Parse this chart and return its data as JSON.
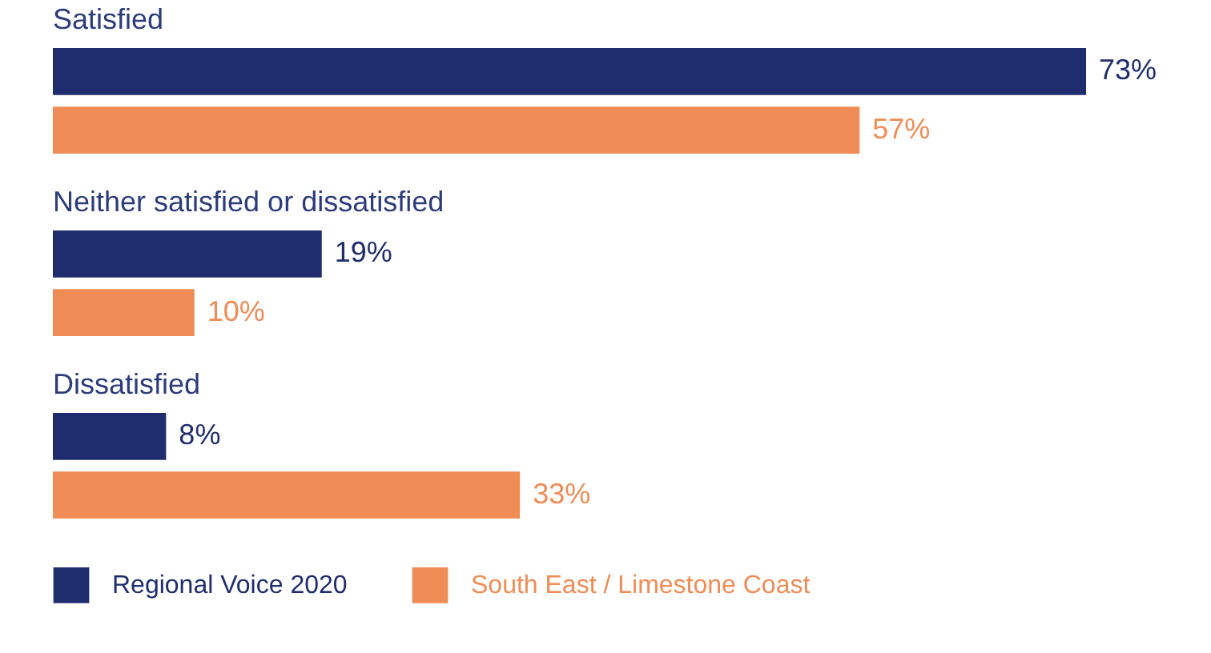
{
  "chart_data": {
    "type": "bar",
    "orientation": "horizontal",
    "categories": [
      "Satisfied",
      "Neither satisfied or dissatisfied",
      "Dissatisfied"
    ],
    "series": [
      {
        "name": "Regional Voice 2020",
        "color": "#1f2d6e",
        "values": [
          73,
          19,
          8
        ],
        "value_labels": [
          "73%",
          "19%",
          "8%"
        ]
      },
      {
        "name": "South East / Limestone Coast",
        "color": "#f08c55",
        "values": [
          57,
          10,
          33
        ],
        "value_labels": [
          "57%",
          "10%",
          "33%"
        ]
      }
    ],
    "legend": "bottom"
  }
}
